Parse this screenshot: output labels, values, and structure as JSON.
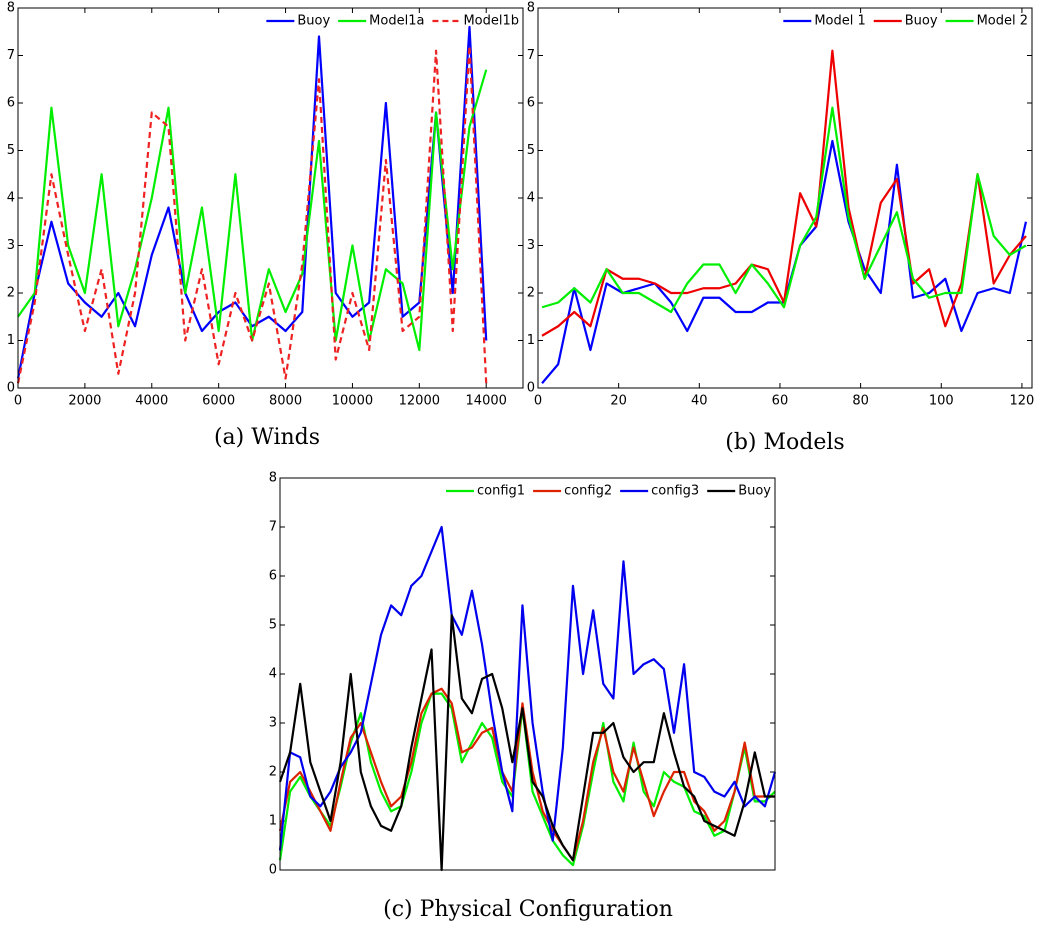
{
  "chart_data": [
    {
      "type": "line",
      "title": "(a) Winds",
      "x": [
        0,
        500,
        1000,
        1500,
        2000,
        2500,
        3000,
        3500,
        4000,
        4500,
        5000,
        5500,
        6000,
        6500,
        7000,
        7500,
        8000,
        8500,
        9000,
        9500,
        10000,
        10500,
        11000,
        11500,
        12000,
        12500,
        13000,
        13500,
        14000
      ],
      "series": [
        {
          "name": "Buoy",
          "color": "#0000ff",
          "dash": false,
          "values": [
            0.2,
            2.0,
            3.5,
            2.2,
            1.8,
            1.5,
            2.0,
            1.3,
            2.8,
            3.8,
            2.0,
            1.2,
            1.6,
            1.8,
            1.3,
            1.5,
            1.2,
            1.6,
            7.4,
            2.0,
            1.5,
            1.8,
            6.0,
            1.5,
            1.8,
            5.8,
            2.0,
            7.6,
            1.0
          ]
        },
        {
          "name": "Model1a",
          "color": "#00ee00",
          "dash": false,
          "values": [
            1.5,
            2.0,
            5.9,
            3.0,
            2.0,
            4.5,
            1.3,
            2.5,
            4.0,
            5.9,
            2.0,
            3.8,
            1.2,
            4.5,
            1.0,
            2.5,
            1.6,
            2.4,
            5.2,
            1.0,
            3.0,
            1.0,
            2.5,
            2.2,
            0.8,
            5.8,
            2.5,
            5.5,
            6.7
          ]
        },
        {
          "name": "Model1b",
          "color": "#ee2222",
          "dash": true,
          "values": [
            0.1,
            1.8,
            4.5,
            2.8,
            1.2,
            2.5,
            0.3,
            2.0,
            5.8,
            5.5,
            1.0,
            2.5,
            0.5,
            2.0,
            1.0,
            2.2,
            0.2,
            2.6,
            6.5,
            0.6,
            2.0,
            0.8,
            4.8,
            1.2,
            1.5,
            7.1,
            1.2,
            7.2,
            0.1
          ]
        }
      ],
      "xlim": [
        0,
        15100
      ],
      "xticks": [
        0,
        2000,
        4000,
        6000,
        8000,
        10000,
        12000,
        14000
      ],
      "ylim": [
        0,
        8
      ],
      "yticks": [
        0,
        1,
        2,
        3,
        4,
        5,
        6,
        7,
        8
      ],
      "legend": "upper right"
    },
    {
      "type": "line",
      "title": "(b) Models",
      "x": [
        1,
        5,
        9,
        13,
        17,
        21,
        25,
        29,
        33,
        37,
        41,
        45,
        49,
        53,
        57,
        61,
        65,
        69,
        73,
        77,
        81,
        85,
        89,
        93,
        97,
        101,
        105,
        109,
        113,
        117,
        121
      ],
      "series": [
        {
          "name": "Model 1",
          "color": "#0000ff",
          "dash": false,
          "values": [
            0.1,
            0.5,
            2.1,
            0.8,
            2.2,
            2.0,
            2.1,
            2.2,
            1.8,
            1.2,
            1.9,
            1.9,
            1.6,
            1.6,
            1.8,
            1.8,
            3.0,
            3.4,
            5.2,
            3.5,
            2.5,
            2.0,
            4.7,
            1.9,
            2.0,
            2.3,
            1.2,
            2.0,
            2.1,
            2.0,
            3.5
          ]
        },
        {
          "name": "Buoy",
          "color": "#ee0000",
          "dash": false,
          "values": [
            1.1,
            1.3,
            1.6,
            1.3,
            2.5,
            2.3,
            2.3,
            2.2,
            2.0,
            2.0,
            2.1,
            2.1,
            2.2,
            2.6,
            2.5,
            1.8,
            4.1,
            3.4,
            7.1,
            3.8,
            2.3,
            3.9,
            4.4,
            2.2,
            2.5,
            1.3,
            2.2,
            4.5,
            2.2,
            2.8,
            3.2
          ]
        },
        {
          "name": "Model 2",
          "color": "#00ee00",
          "dash": false,
          "values": [
            1.7,
            1.8,
            2.1,
            1.8,
            2.5,
            2.0,
            2.0,
            1.8,
            1.6,
            2.2,
            2.6,
            2.6,
            2.0,
            2.6,
            2.2,
            1.7,
            3.0,
            3.6,
            5.9,
            3.6,
            2.3,
            3.0,
            3.7,
            2.3,
            1.9,
            2.0,
            2.0,
            4.5,
            3.2,
            2.8,
            3.0
          ]
        }
      ],
      "xlim": [
        0,
        122.5
      ],
      "xticks": [
        0,
        20,
        40,
        60,
        80,
        100,
        120
      ],
      "ylim": [
        0,
        8
      ],
      "yticks": [
        0,
        1,
        2,
        3,
        4,
        5,
        6,
        7,
        8
      ],
      "legend": "upper right"
    },
    {
      "type": "line",
      "title": "(c) Physical Configuration",
      "x": [
        0,
        1,
        2,
        3,
        4,
        5,
        6,
        7,
        8,
        9,
        10,
        11,
        12,
        13,
        14,
        15,
        16,
        17,
        18,
        19,
        20,
        21,
        22,
        23,
        24,
        25,
        26,
        27,
        28,
        29,
        30,
        31,
        32,
        33,
        34,
        35,
        36,
        37,
        38,
        39,
        40,
        41,
        42,
        43,
        44,
        45,
        46,
        47,
        48,
        49
      ],
      "series": [
        {
          "name": "config1",
          "color": "#00ee00",
          "dash": false,
          "values": [
            0.2,
            1.6,
            1.9,
            1.5,
            1.2,
            0.9,
            1.7,
            2.6,
            3.2,
            2.2,
            1.6,
            1.2,
            1.3,
            2.0,
            3.0,
            3.6,
            3.6,
            3.3,
            2.2,
            2.6,
            3.0,
            2.7,
            1.8,
            1.5,
            3.3,
            1.6,
            1.1,
            0.6,
            0.3,
            0.1,
            0.9,
            2.0,
            3.0,
            1.8,
            1.4,
            2.6,
            1.6,
            1.3,
            2.0,
            1.8,
            1.7,
            1.2,
            1.1,
            0.7,
            0.8,
            1.6,
            2.5,
            1.4,
            1.4,
            1.6
          ]
        },
        {
          "name": "config2",
          "color": "#dd2200",
          "dash": false,
          "values": [
            0.8,
            1.8,
            2.0,
            1.6,
            1.2,
            0.8,
            1.8,
            2.7,
            3.0,
            2.4,
            1.8,
            1.3,
            1.5,
            2.2,
            3.2,
            3.6,
            3.7,
            3.4,
            2.4,
            2.5,
            2.8,
            2.9,
            2.0,
            1.6,
            3.4,
            2.0,
            1.2,
            0.8,
            0.5,
            0.2,
            1.0,
            2.2,
            2.9,
            2.0,
            1.6,
            2.5,
            1.8,
            1.1,
            1.6,
            2.0,
            2.0,
            1.4,
            1.2,
            0.8,
            1.0,
            1.6,
            2.6,
            1.5,
            1.5,
            1.5
          ]
        },
        {
          "name": "config3",
          "color": "#0000ee",
          "dash": false,
          "values": [
            0.4,
            2.4,
            2.3,
            1.5,
            1.3,
            1.6,
            2.1,
            2.4,
            2.8,
            3.8,
            4.8,
            5.4,
            5.2,
            5.8,
            6.0,
            6.5,
            7.0,
            5.2,
            4.8,
            5.7,
            4.6,
            3.2,
            2.0,
            1.2,
            5.4,
            3.0,
            1.6,
            0.6,
            2.5,
            5.8,
            4.0,
            5.3,
            3.8,
            3.5,
            6.3,
            4.0,
            4.2,
            4.3,
            4.1,
            2.8,
            4.2,
            2.0,
            1.9,
            1.6,
            1.5,
            1.8,
            1.3,
            1.5,
            1.3,
            2.0
          ]
        },
        {
          "name": "Buoy",
          "color": "#000000",
          "dash": false,
          "values": [
            1.8,
            2.4,
            3.8,
            2.2,
            1.6,
            1.0,
            2.2,
            4.0,
            2.0,
            1.3,
            0.9,
            0.8,
            1.3,
            2.5,
            3.5,
            4.5,
            0,
            5.2,
            3.5,
            3.2,
            3.9,
            4.0,
            3.3,
            2.2,
            3.3,
            1.8,
            1.5,
            0.9,
            0.5,
            0.2,
            1.5,
            2.8,
            2.8,
            3.0,
            2.3,
            2.0,
            2.2,
            2.2,
            3.2,
            2.4,
            1.7,
            1.5,
            1.0,
            0.9,
            0.8,
            0.7,
            1.4,
            2.4,
            1.5,
            1.5
          ]
        }
      ],
      "xlim": [
        0,
        49
      ],
      "ylim": [
        0,
        8
      ],
      "yticks": [
        0,
        1,
        2,
        3,
        4,
        5,
        6,
        7,
        8
      ],
      "legend": "upper right"
    }
  ]
}
